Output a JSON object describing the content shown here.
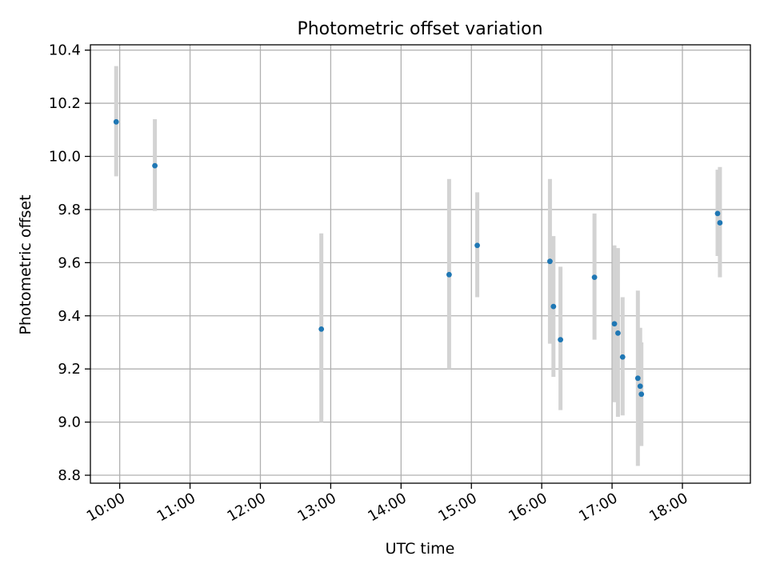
{
  "chart_data": {
    "type": "scatter",
    "title": "Photometric offset variation",
    "xlabel": "UTC time",
    "ylabel": "Photometric offset",
    "grid": true,
    "legend": "none",
    "xlim": [
      "09:35",
      "18:58"
    ],
    "ylim": [
      8.77,
      10.42
    ],
    "x_ticks": [
      "10:00",
      "11:00",
      "12:00",
      "13:00",
      "14:00",
      "15:00",
      "16:00",
      "17:00",
      "18:00"
    ],
    "y_ticks": [
      "8.8",
      "9.0",
      "9.2",
      "9.4",
      "9.6",
      "9.8",
      "10.0",
      "10.2",
      "10.4"
    ],
    "point_color": "#1f77b4",
    "errorbar_color": "#d3d3d3",
    "grid_color": "#b0b0b0",
    "points": [
      {
        "x": "09:57",
        "y": 10.13,
        "ylow": 9.925,
        "yhigh": 10.34
      },
      {
        "x": "10:30",
        "y": 9.965,
        "ylow": 9.795,
        "yhigh": 10.14
      },
      {
        "x": "12:52",
        "y": 9.35,
        "ylow": 9.0,
        "yhigh": 9.71
      },
      {
        "x": "14:41",
        "y": 9.555,
        "ylow": 9.2,
        "yhigh": 9.915
      },
      {
        "x": "15:05",
        "y": 9.665,
        "ylow": 9.47,
        "yhigh": 9.865
      },
      {
        "x": "16:07",
        "y": 9.605,
        "ylow": 9.295,
        "yhigh": 9.915
      },
      {
        "x": "16:10",
        "y": 9.435,
        "ylow": 9.17,
        "yhigh": 9.7
      },
      {
        "x": "16:16",
        "y": 9.31,
        "ylow": 9.045,
        "yhigh": 9.585
      },
      {
        "x": "16:45",
        "y": 9.545,
        "ylow": 9.31,
        "yhigh": 9.785
      },
      {
        "x": "17:02",
        "y": 9.37,
        "ylow": 9.075,
        "yhigh": 9.665
      },
      {
        "x": "17:05",
        "y": 9.335,
        "ylow": 9.02,
        "yhigh": 9.655
      },
      {
        "x": "17:09",
        "y": 9.245,
        "ylow": 9.025,
        "yhigh": 9.47
      },
      {
        "x": "17:22",
        "y": 9.165,
        "ylow": 8.835,
        "yhigh": 9.495
      },
      {
        "x": "17:24",
        "y": 9.135,
        "ylow": 8.915,
        "yhigh": 9.355
      },
      {
        "x": "17:25",
        "y": 9.105,
        "ylow": 8.91,
        "yhigh": 9.3
      },
      {
        "x": "18:30",
        "y": 9.785,
        "ylow": 9.625,
        "yhigh": 9.95
      },
      {
        "x": "18:32",
        "y": 9.75,
        "ylow": 9.545,
        "yhigh": 9.96
      }
    ]
  }
}
